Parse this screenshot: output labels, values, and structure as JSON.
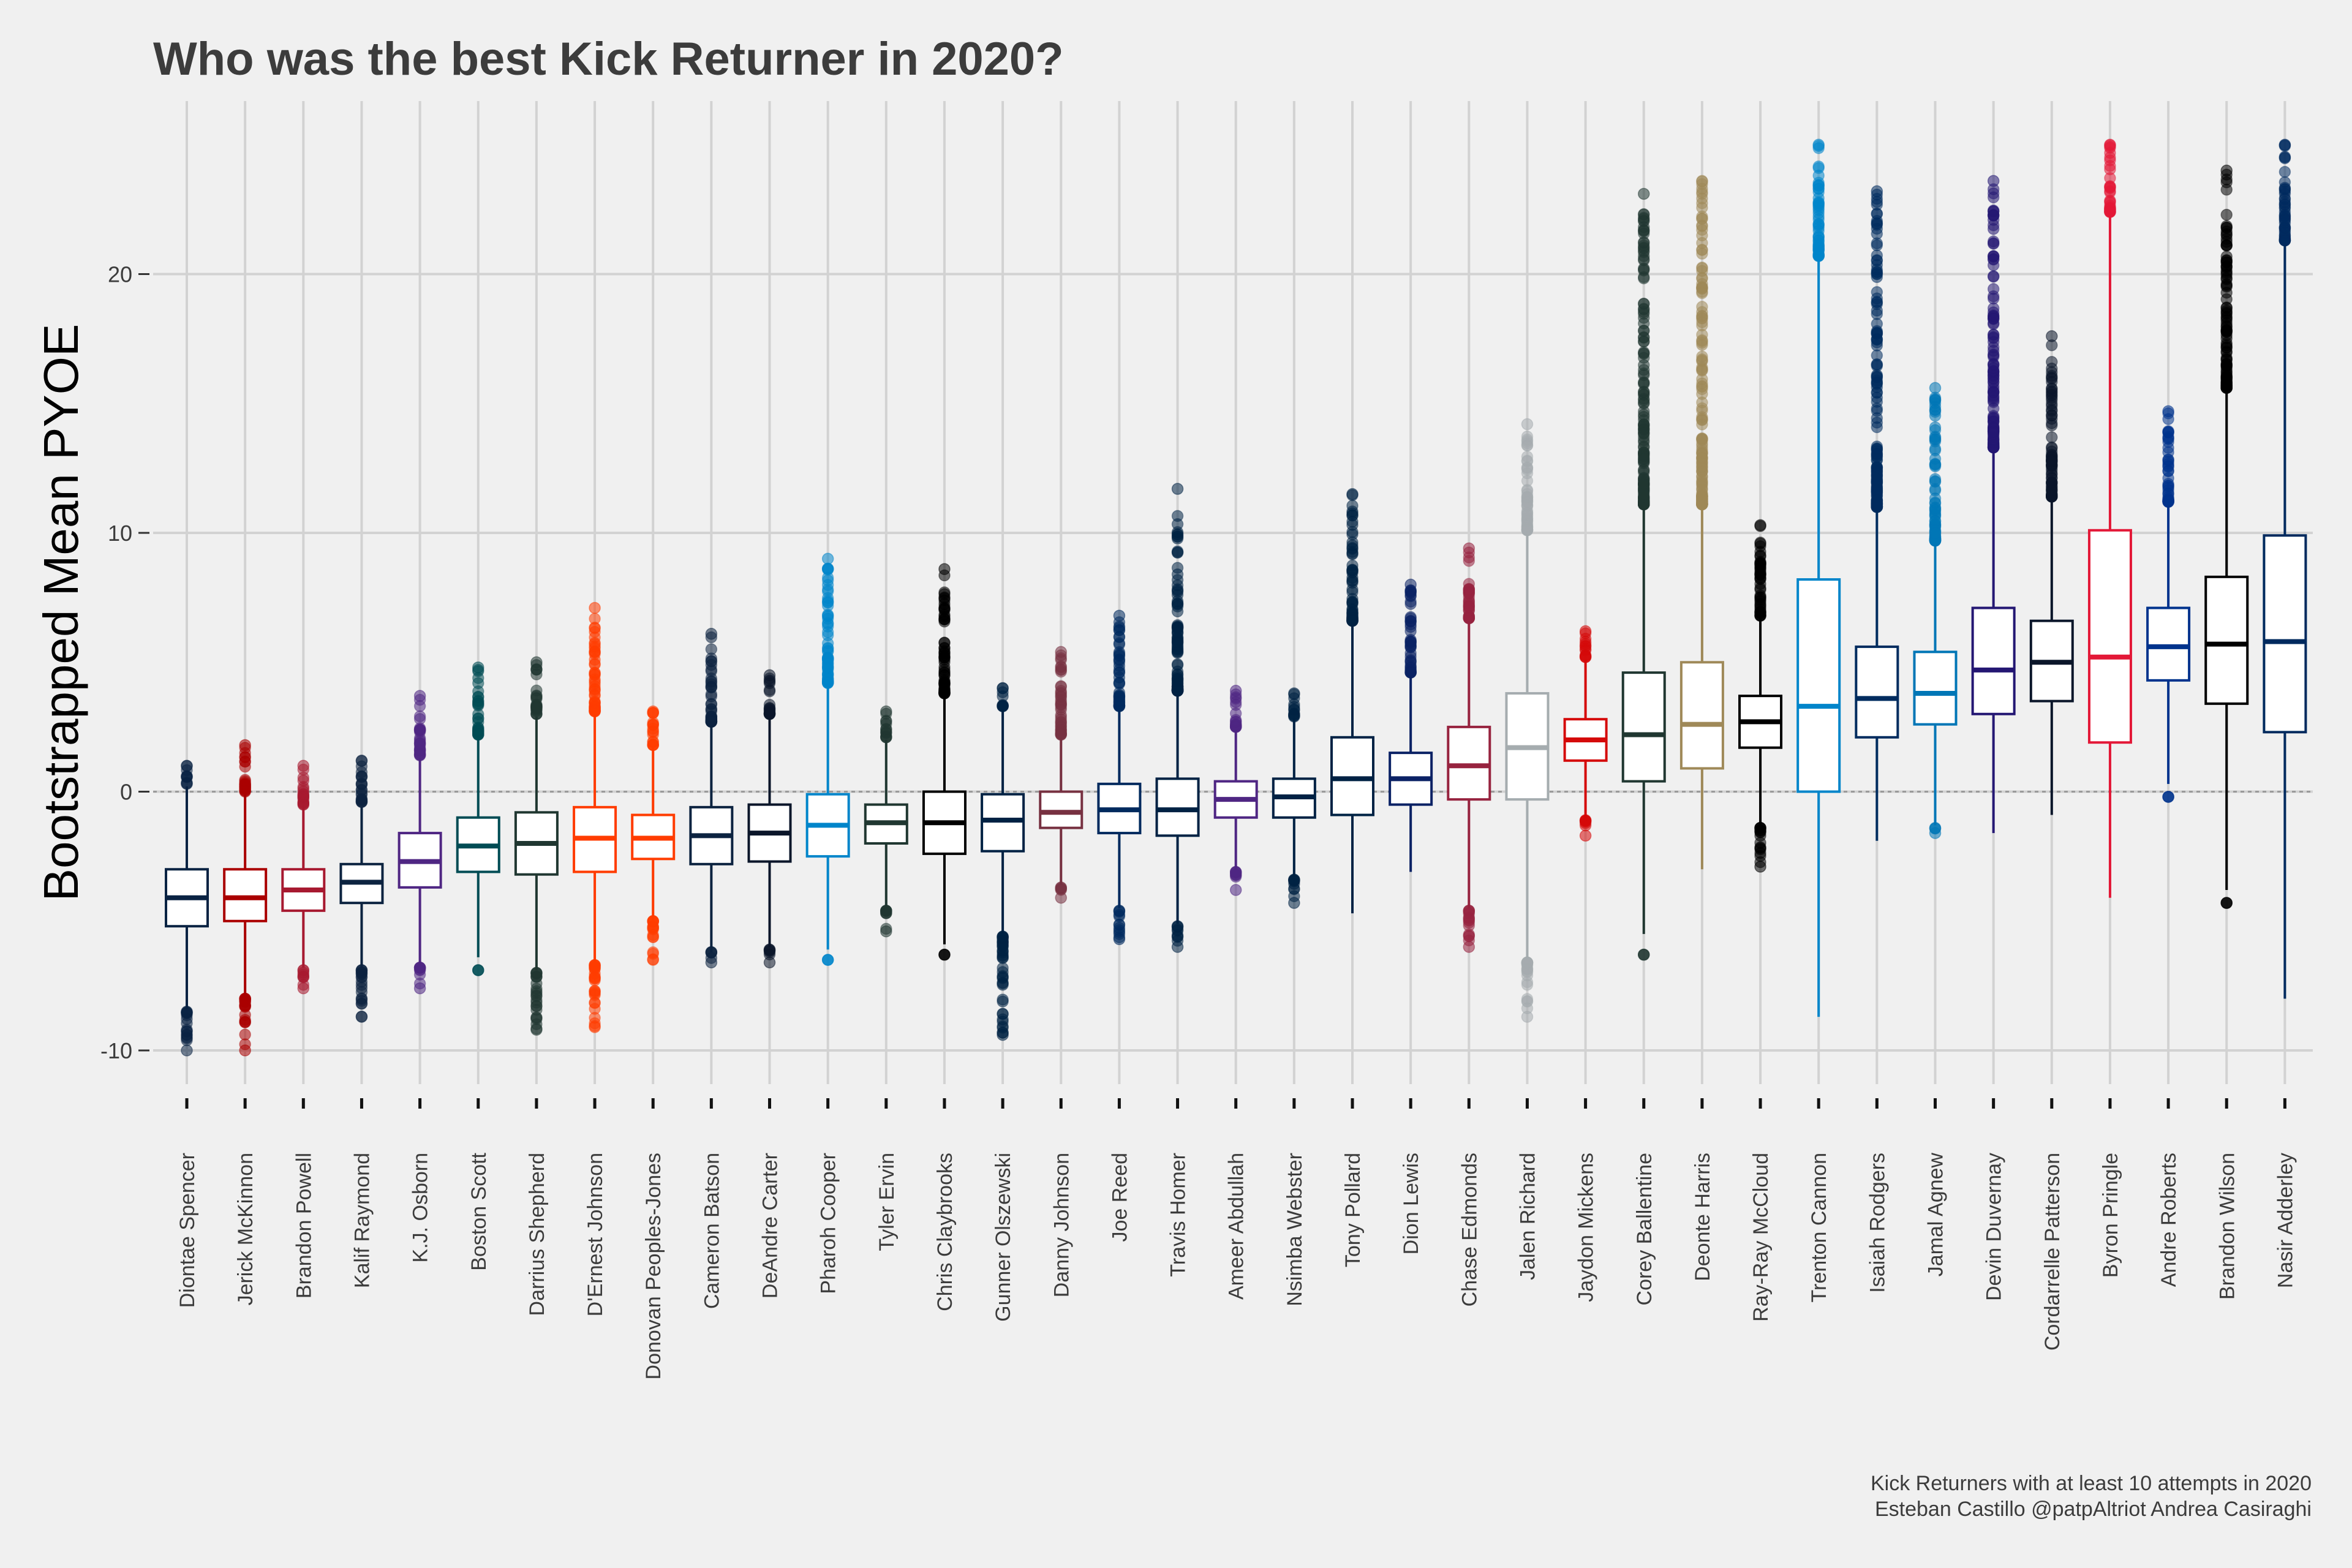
{
  "chart_data": {
    "type": "box",
    "title": "Who was the best Kick Returner in 2020?",
    "ylabel": "Bootstrapped Mean PYOE",
    "xlabel": "",
    "ylim": [
      -12,
      26
    ],
    "yticks": [
      -10,
      0,
      10,
      20
    ],
    "ytick_labels": [
      "-10",
      "0",
      "10",
      "20"
    ],
    "grid": true,
    "reference_line_y": 0,
    "caption": [
      "Kick Returners with at least 10 attempts in 2020",
      "Esteban Castillo @patpAltriot Andrea Casiraghi"
    ],
    "players": [
      {
        "name": "Diontae Spencer",
        "color": "#0a2343",
        "median": -4.1,
        "q1": -5.2,
        "q3": -3.0,
        "wlo": -8.4,
        "whi": 0.2,
        "outliers_lo": [
          -10.0,
          -8.5
        ],
        "outliers_hi": [
          0.3,
          1.0
        ]
      },
      {
        "name": "Jerick McKinnon",
        "color": "#aa0000",
        "median": -4.1,
        "q1": -5.0,
        "q3": -3.0,
        "wlo": -8.0,
        "whi": 0.0,
        "outliers_lo": [
          -10.0,
          -8.0
        ],
        "outliers_hi": [
          0.0,
          1.8
        ]
      },
      {
        "name": "Brandon Powell",
        "color": "#a71930",
        "median": -3.8,
        "q1": -4.6,
        "q3": -3.0,
        "wlo": -6.8,
        "whi": -0.5,
        "outliers_lo": [
          -7.6,
          -6.9
        ],
        "outliers_hi": [
          -0.5,
          1.0
        ]
      },
      {
        "name": "Kalif Raymond",
        "color": "#0c2340",
        "median": -3.5,
        "q1": -4.3,
        "q3": -2.8,
        "wlo": -6.8,
        "whi": -0.6,
        "outliers_lo": [
          -8.7,
          -6.9
        ],
        "outliers_hi": [
          -0.4,
          1.2
        ]
      },
      {
        "name": "K.J. Osborn",
        "color": "#4f2683",
        "median": -2.7,
        "q1": -3.7,
        "q3": -1.6,
        "wlo": -6.8,
        "whi": 1.3,
        "outliers_lo": [
          -7.6,
          -6.8
        ],
        "outliers_hi": [
          1.4,
          3.7
        ]
      },
      {
        "name": "Boston Scott",
        "color": "#004c54",
        "median": -2.1,
        "q1": -3.1,
        "q3": -1.0,
        "wlo": -6.4,
        "whi": 2.1,
        "outliers_lo": [
          -6.9
        ],
        "outliers_hi": [
          2.2,
          4.8
        ]
      },
      {
        "name": "Darrius Shepherd",
        "color": "#203731",
        "median": -2.0,
        "q1": -3.2,
        "q3": -0.8,
        "wlo": -6.9,
        "whi": 2.9,
        "outliers_lo": [
          -9.2,
          -7.0
        ],
        "outliers_hi": [
          3.0,
          5.0
        ]
      },
      {
        "name": "D'Ernest Johnson",
        "color": "#ff3c00",
        "median": -1.8,
        "q1": -3.1,
        "q3": -0.6,
        "wlo": -6.6,
        "whi": 3.0,
        "outliers_lo": [
          -9.1,
          -6.7
        ],
        "outliers_hi": [
          3.1,
          7.1
        ]
      },
      {
        "name": "Donovan Peoples-Jones",
        "color": "#ff3c00",
        "median": -1.8,
        "q1": -2.6,
        "q3": -0.9,
        "wlo": -5.0,
        "whi": 1.7,
        "outliers_lo": [
          -6.5,
          -5.0
        ],
        "outliers_hi": [
          1.8,
          3.1
        ]
      },
      {
        "name": "Cameron Batson",
        "color": "#0c2340",
        "median": -1.7,
        "q1": -2.8,
        "q3": -0.6,
        "wlo": -6.2,
        "whi": 2.6,
        "outliers_lo": [
          -6.6,
          -6.2
        ],
        "outliers_hi": [
          2.7,
          6.1
        ]
      },
      {
        "name": "DeAndre Carter",
        "color": "#0b162a",
        "median": -1.6,
        "q1": -2.7,
        "q3": -0.5,
        "wlo": -6.0,
        "whi": 2.9,
        "outliers_lo": [
          -6.6,
          -6.1
        ],
        "outliers_hi": [
          3.0,
          4.5
        ]
      },
      {
        "name": "Pharoh Cooper",
        "color": "#0085ca",
        "median": -1.3,
        "q1": -2.5,
        "q3": -0.1,
        "wlo": -6.1,
        "whi": 4.0,
        "outliers_lo": [
          -6.5
        ],
        "outliers_hi": [
          4.2,
          9.0
        ]
      },
      {
        "name": "Tyler Ervin",
        "color": "#203731",
        "median": -1.2,
        "q1": -2.0,
        "q3": -0.5,
        "wlo": -4.5,
        "whi": 2.0,
        "outliers_lo": [
          -5.4,
          -4.6
        ],
        "outliers_hi": [
          2.1,
          3.1
        ]
      },
      {
        "name": "Chris Claybrooks",
        "color": "#000000",
        "median": -1.2,
        "q1": -2.4,
        "q3": 0.0,
        "wlo": -5.9,
        "whi": 3.7,
        "outliers_lo": [
          -6.3
        ],
        "outliers_hi": [
          3.8,
          8.6
        ]
      },
      {
        "name": "Gunner Olszewski",
        "color": "#002244",
        "median": -1.1,
        "q1": -2.3,
        "q3": -0.1,
        "wlo": -5.5,
        "whi": 3.2,
        "outliers_lo": [
          -9.4,
          -5.6
        ],
        "outliers_hi": [
          3.3,
          4.0
        ]
      },
      {
        "name": "Danny Johnson",
        "color": "#773141",
        "median": -0.8,
        "q1": -1.4,
        "q3": 0.0,
        "wlo": -3.6,
        "whi": 2.1,
        "outliers_lo": [
          -4.1,
          -3.7
        ],
        "outliers_hi": [
          2.2,
          5.4
        ]
      },
      {
        "name": "Joe Reed",
        "color": "#002a5e",
        "median": -0.7,
        "q1": -1.6,
        "q3": 0.3,
        "wlo": -4.5,
        "whi": 3.2,
        "outliers_lo": [
          -5.7,
          -4.6
        ],
        "outliers_hi": [
          3.3,
          6.8
        ]
      },
      {
        "name": "Travis Homer",
        "color": "#002244",
        "median": -0.7,
        "q1": -1.7,
        "q3": 0.5,
        "wlo": -5.1,
        "whi": 3.8,
        "outliers_lo": [
          -6.0,
          -5.2
        ],
        "outliers_hi": [
          3.9,
          11.7
        ]
      },
      {
        "name": "Ameer Abdullah",
        "color": "#4f2683",
        "median": -0.3,
        "q1": -1.0,
        "q3": 0.4,
        "wlo": -3.0,
        "whi": 2.4,
        "outliers_lo": [
          -3.8,
          -3.1
        ],
        "outliers_hi": [
          2.5,
          3.9
        ]
      },
      {
        "name": "Nsimba Webster",
        "color": "#002244",
        "median": -0.2,
        "q1": -1.0,
        "q3": 0.5,
        "wlo": -3.3,
        "whi": 2.8,
        "outliers_lo": [
          -4.3,
          -3.4
        ],
        "outliers_hi": [
          2.9,
          3.8
        ]
      },
      {
        "name": "Tony Pollard",
        "color": "#002244",
        "median": 0.5,
        "q1": -0.9,
        "q3": 2.1,
        "wlo": -4.7,
        "whi": 6.5,
        "outliers_lo": [],
        "outliers_hi": [
          6.6,
          11.5
        ]
      },
      {
        "name": "Dion Lewis",
        "color": "#0b2265",
        "median": 0.5,
        "q1": -0.5,
        "q3": 1.5,
        "wlo": -3.1,
        "whi": 4.5,
        "outliers_lo": [],
        "outliers_hi": [
          4.6,
          8.0
        ]
      },
      {
        "name": "Chase Edmonds",
        "color": "#97233f",
        "median": 1.0,
        "q1": -0.3,
        "q3": 2.5,
        "wlo": -4.5,
        "whi": 6.6,
        "outliers_lo": [
          -6.0,
          -4.6
        ],
        "outliers_hi": [
          6.7,
          9.4
        ]
      },
      {
        "name": "Jalen Richard",
        "color": "#a5acaf",
        "median": 1.7,
        "q1": -0.3,
        "q3": 3.8,
        "wlo": -6.5,
        "whi": 10.0,
        "outliers_lo": [
          -8.7,
          -6.6
        ],
        "outliers_hi": [
          10.1,
          14.2
        ]
      },
      {
        "name": "Jaydon Mickens",
        "color": "#d50a0a",
        "median": 2.0,
        "q1": 1.2,
        "q3": 2.8,
        "wlo": -1.0,
        "whi": 5.1,
        "outliers_lo": [
          -1.7,
          -1.1
        ],
        "outliers_hi": [
          5.2,
          6.2
        ]
      },
      {
        "name": "Corey Ballentine",
        "color": "#203731",
        "median": 2.2,
        "q1": 0.4,
        "q3": 4.6,
        "wlo": -5.5,
        "whi": 11.0,
        "outliers_lo": [
          -6.3
        ],
        "outliers_hi": [
          11.1,
          23.1
        ]
      },
      {
        "name": "Deonte Harris",
        "color": "#9f8958",
        "median": 2.6,
        "q1": 0.9,
        "q3": 5.0,
        "wlo": -3.0,
        "whi": 11.0,
        "outliers_lo": [],
        "outliers_hi": [
          11.1,
          23.6
        ]
      },
      {
        "name": "Ray-Ray McCloud",
        "color": "#000000",
        "median": 2.7,
        "q1": 1.7,
        "q3": 3.7,
        "wlo": -1.3,
        "whi": 6.7,
        "outliers_lo": [
          -2.9,
          -1.4
        ],
        "outliers_hi": [
          6.8,
          10.3
        ]
      },
      {
        "name": "Trenton Cannon",
        "color": "#0085ca",
        "median": 3.3,
        "q1": 0.0,
        "q3": 8.2,
        "wlo": -8.7,
        "whi": 20.6,
        "outliers_lo": [],
        "outliers_hi": [
          20.7,
          25.0
        ]
      },
      {
        "name": "Isaiah Rodgers",
        "color": "#002c5f",
        "median": 3.6,
        "q1": 2.1,
        "q3": 5.6,
        "wlo": -1.9,
        "whi": 10.9,
        "outliers_lo": [],
        "outliers_hi": [
          11.0,
          23.2
        ]
      },
      {
        "name": "Jamal Agnew",
        "color": "#0076b6",
        "median": 3.8,
        "q1": 2.6,
        "q3": 5.4,
        "wlo": -1.3,
        "whi": 9.6,
        "outliers_lo": [
          -1.6,
          -1.4
        ],
        "outliers_hi": [
          9.7,
          15.6
        ]
      },
      {
        "name": "Devin Duvernay",
        "color": "#241773",
        "median": 4.7,
        "q1": 3.0,
        "q3": 7.1,
        "wlo": -1.6,
        "whi": 13.2,
        "outliers_lo": [],
        "outliers_hi": [
          13.3,
          23.6
        ]
      },
      {
        "name": "Cordarrelle Patterson",
        "color": "#0b162a",
        "median": 5.0,
        "q1": 3.5,
        "q3": 6.6,
        "wlo": -0.9,
        "whi": 11.3,
        "outliers_lo": [],
        "outliers_hi": [
          11.4,
          17.6
        ]
      },
      {
        "name": "Byron Pringle",
        "color": "#e31837",
        "median": 5.2,
        "q1": 1.9,
        "q3": 10.1,
        "wlo": -4.1,
        "whi": 22.3,
        "outliers_lo": [],
        "outliers_hi": [
          22.4,
          25.0
        ]
      },
      {
        "name": "Andre Roberts",
        "color": "#00338d",
        "median": 5.6,
        "q1": 4.3,
        "q3": 7.1,
        "wlo": 0.3,
        "whi": 11.1,
        "outliers_lo": [
          -0.2
        ],
        "outliers_hi": [
          11.2,
          14.7
        ]
      },
      {
        "name": "Brandon Wilson",
        "color": "#000000",
        "median": 5.7,
        "q1": 3.4,
        "q3": 8.3,
        "wlo": -3.8,
        "whi": 15.5,
        "outliers_lo": [
          -4.3
        ],
        "outliers_hi": [
          15.6,
          24.0
        ]
      },
      {
        "name": "Nasir Adderley",
        "color": "#002a5e",
        "median": 5.8,
        "q1": 2.3,
        "q3": 9.9,
        "wlo": -8.0,
        "whi": 21.2,
        "outliers_lo": [],
        "outliers_hi": [
          21.3,
          25.0
        ]
      }
    ]
  }
}
